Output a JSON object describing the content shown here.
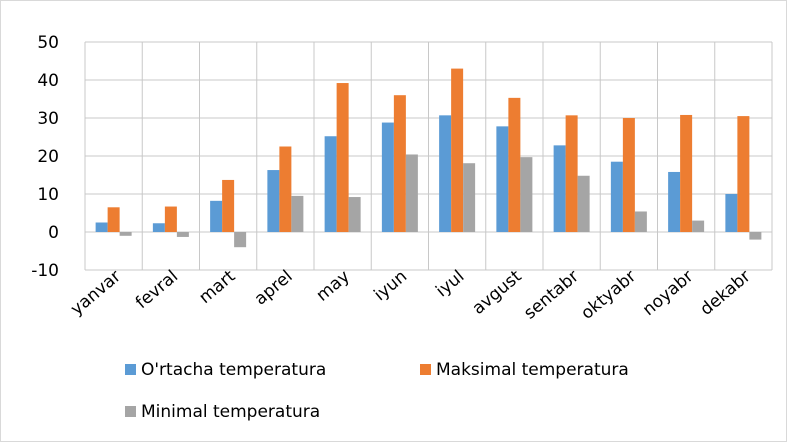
{
  "chart_data": {
    "type": "bar",
    "categories": [
      "yanvar",
      "fevral",
      "mart",
      "aprel",
      "may",
      "iyun",
      "iyul",
      "avgust",
      "sentabr",
      "oktyabr",
      "noyabr",
      "dekabr"
    ],
    "series": [
      {
        "name": "O'rtacha temperatura",
        "color": "#5b9bd5",
        "values": [
          2.5,
          2.3,
          8.2,
          16.3,
          25.2,
          28.8,
          30.7,
          27.8,
          22.8,
          18.5,
          15.8,
          10.0
        ]
      },
      {
        "name": "Maksimal temperatura",
        "color": "#ed7d31",
        "values": [
          6.5,
          6.7,
          13.7,
          22.5,
          39.2,
          36.0,
          43.0,
          35.3,
          30.7,
          30.0,
          30.8,
          30.5
        ]
      },
      {
        "name": "Minimal temperatura",
        "color": "#a5a5a5",
        "values": [
          -1.0,
          -1.3,
          -4.0,
          9.5,
          9.2,
          20.4,
          18.1,
          19.7,
          14.8,
          5.4,
          3.0,
          -2.0
        ]
      }
    ],
    "ylim": [
      -10,
      50
    ],
    "yticks": [
      -10,
      0,
      10,
      20,
      30,
      40,
      50
    ],
    "grid": true
  }
}
